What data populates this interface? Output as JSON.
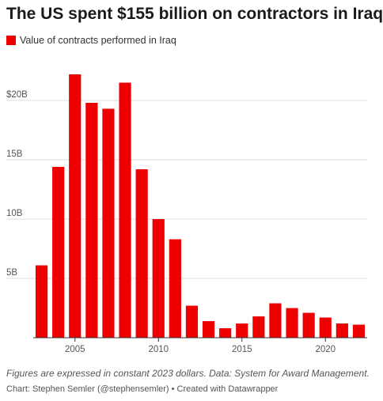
{
  "chart_data": {
    "type": "bar",
    "title": "The US spent $155 billion on contractors in Iraq",
    "legend": {
      "label": "Value of contracts performed in Iraq",
      "placement": "top-left"
    },
    "color": "#ee0000",
    "x": [
      2003,
      2004,
      2005,
      2006,
      2007,
      2008,
      2009,
      2010,
      2011,
      2012,
      2013,
      2014,
      2015,
      2016,
      2017,
      2018,
      2019,
      2020,
      2021,
      2022
    ],
    "values": [
      6.1,
      14.4,
      22.2,
      19.8,
      19.3,
      21.5,
      14.2,
      10.0,
      8.3,
      2.7,
      1.4,
      0.8,
      1.2,
      1.8,
      2.9,
      2.5,
      2.1,
      1.7,
      1.2,
      1.1
    ],
    "unit": "billion USD",
    "ylim": [
      0,
      25
    ],
    "y_ticks": [
      {
        "value": 5,
        "label": "5B"
      },
      {
        "value": 10,
        "label": "10B"
      },
      {
        "value": 15,
        "label": "15B"
      },
      {
        "value": 20,
        "label": "$20B"
      }
    ],
    "x_ticks": [
      2005,
      2010,
      2015,
      2020
    ],
    "grid": true,
    "xlabel": "",
    "ylabel": ""
  },
  "notes": "Figures are expressed in constant 2023 dollars. Data: System for Award Management.",
  "credit": "Chart: Stephen Semler (@stephensemler) • Created with Datawrapper"
}
